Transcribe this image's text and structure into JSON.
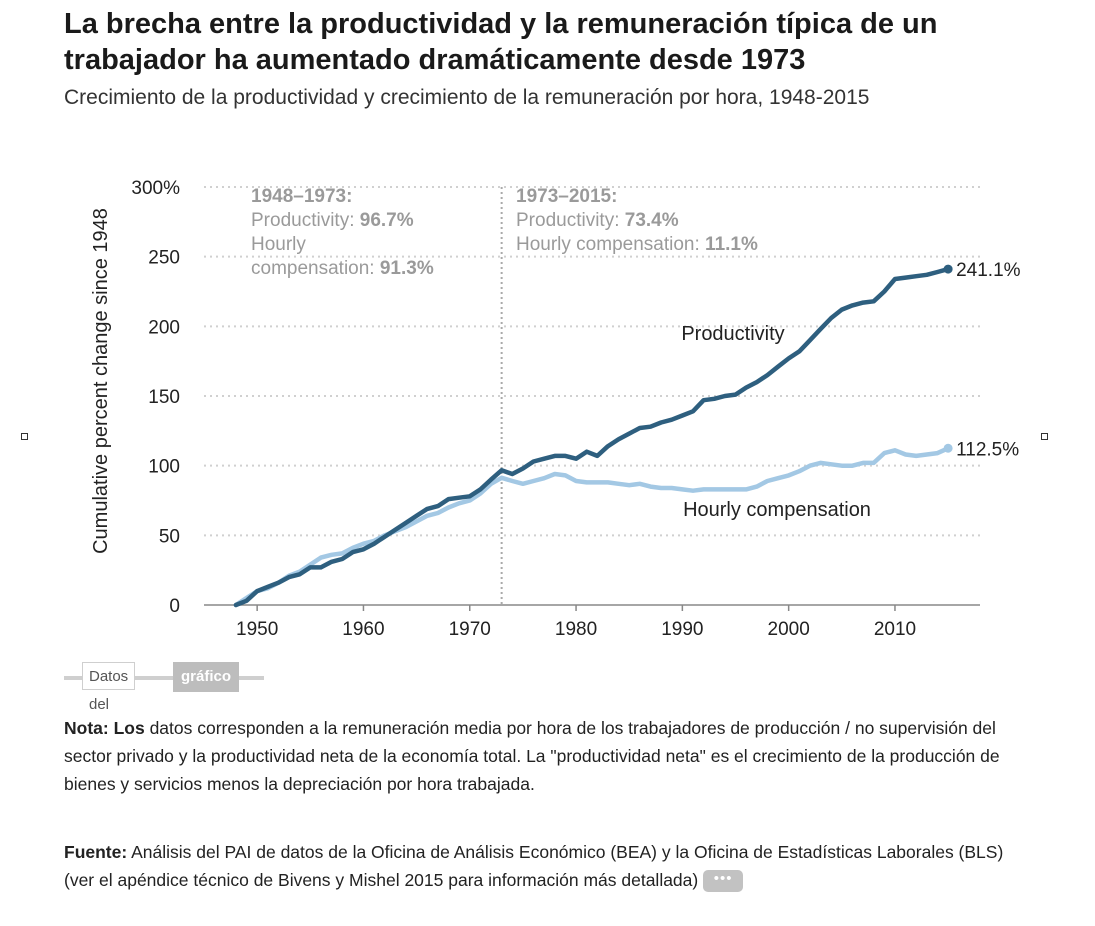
{
  "header": {
    "title": "La brecha entre la productividad y la remuneración típica de un trabajador ha aumentado dramáticamente desde 1973",
    "subtitle": "Crecimiento de la productividad y crecimiento de la remuneración por hora, 1948-2015"
  },
  "chart_data": {
    "type": "line",
    "ylabel": "Cumulative percent change since 1948",
    "xlabel": "",
    "xlim": [
      1945,
      2018
    ],
    "ylim": [
      0,
      300
    ],
    "x_ticks": [
      1950,
      1960,
      1970,
      1980,
      1990,
      2000,
      2010
    ],
    "y_ticks": [
      0,
      50,
      100,
      150,
      200,
      250,
      300
    ],
    "y_tick_labels": [
      "0",
      "50",
      "100",
      "150",
      "200",
      "250",
      "300%"
    ],
    "grid": true,
    "divider_year": 1973,
    "colors": {
      "productivity": "#2e5f7f",
      "compensation": "#a3c8e4",
      "grid": "#d0d0d0",
      "axis": "#888888",
      "annotation": "#9a9a9a"
    },
    "series": [
      {
        "name": "Productivity",
        "end_label": "241.1%",
        "points": [
          [
            1948,
            0
          ],
          [
            1949,
            3
          ],
          [
            1950,
            10
          ],
          [
            1951,
            13
          ],
          [
            1952,
            16
          ],
          [
            1953,
            20
          ],
          [
            1954,
            22
          ],
          [
            1955,
            27
          ],
          [
            1956,
            27
          ],
          [
            1957,
            31
          ],
          [
            1958,
            33
          ],
          [
            1959,
            38
          ],
          [
            1960,
            40
          ],
          [
            1961,
            44
          ],
          [
            1962,
            49
          ],
          [
            1963,
            54
          ],
          [
            1964,
            59
          ],
          [
            1965,
            64
          ],
          [
            1966,
            69
          ],
          [
            1967,
            71
          ],
          [
            1968,
            76
          ],
          [
            1969,
            77
          ],
          [
            1970,
            78
          ],
          [
            1971,
            83
          ],
          [
            1972,
            90
          ],
          [
            1973,
            96.7
          ],
          [
            1974,
            94
          ],
          [
            1975,
            98
          ],
          [
            1976,
            103
          ],
          [
            1977,
            105
          ],
          [
            1978,
            107
          ],
          [
            1979,
            107
          ],
          [
            1980,
            105
          ],
          [
            1981,
            110
          ],
          [
            1982,
            107
          ],
          [
            1983,
            114
          ],
          [
            1984,
            119
          ],
          [
            1985,
            123
          ],
          [
            1986,
            127
          ],
          [
            1987,
            128
          ],
          [
            1988,
            131
          ],
          [
            1989,
            133
          ],
          [
            1990,
            136
          ],
          [
            1991,
            139
          ],
          [
            1992,
            147
          ],
          [
            1993,
            148
          ],
          [
            1994,
            150
          ],
          [
            1995,
            151
          ],
          [
            1996,
            156
          ],
          [
            1997,
            160
          ],
          [
            1998,
            165
          ],
          [
            1999,
            171
          ],
          [
            2000,
            177
          ],
          [
            2001,
            182
          ],
          [
            2002,
            190
          ],
          [
            2003,
            198
          ],
          [
            2004,
            206
          ],
          [
            2005,
            212
          ],
          [
            2006,
            215
          ],
          [
            2007,
            217
          ],
          [
            2008,
            218
          ],
          [
            2009,
            225
          ],
          [
            2010,
            234
          ],
          [
            2011,
            235
          ],
          [
            2012,
            236
          ],
          [
            2013,
            237
          ],
          [
            2014,
            239
          ],
          [
            2015,
            241.1
          ]
        ]
      },
      {
        "name": "Hourly compensation",
        "end_label": "112.5%",
        "points": [
          [
            1948,
            0
          ],
          [
            1949,
            5
          ],
          [
            1950,
            10
          ],
          [
            1951,
            12
          ],
          [
            1952,
            16
          ],
          [
            1953,
            21
          ],
          [
            1954,
            24
          ],
          [
            1955,
            29
          ],
          [
            1956,
            34
          ],
          [
            1957,
            36
          ],
          [
            1958,
            37
          ],
          [
            1959,
            41
          ],
          [
            1960,
            44
          ],
          [
            1961,
            46
          ],
          [
            1962,
            50
          ],
          [
            1963,
            53
          ],
          [
            1964,
            56
          ],
          [
            1965,
            60
          ],
          [
            1966,
            64
          ],
          [
            1967,
            66
          ],
          [
            1968,
            70
          ],
          [
            1969,
            73
          ],
          [
            1970,
            75
          ],
          [
            1971,
            80
          ],
          [
            1972,
            87
          ],
          [
            1973,
            91.3
          ],
          [
            1974,
            89
          ],
          [
            1975,
            87
          ],
          [
            1976,
            89
          ],
          [
            1977,
            91
          ],
          [
            1978,
            94
          ],
          [
            1979,
            93
          ],
          [
            1980,
            89
          ],
          [
            1981,
            88
          ],
          [
            1982,
            88
          ],
          [
            1983,
            88
          ],
          [
            1984,
            87
          ],
          [
            1985,
            86
          ],
          [
            1986,
            87
          ],
          [
            1987,
            85
          ],
          [
            1988,
            84
          ],
          [
            1989,
            84
          ],
          [
            1990,
            83
          ],
          [
            1991,
            82
          ],
          [
            1992,
            83
          ],
          [
            1993,
            83
          ],
          [
            1994,
            83
          ],
          [
            1995,
            83
          ],
          [
            1996,
            83
          ],
          [
            1997,
            85
          ],
          [
            1998,
            89
          ],
          [
            1999,
            91
          ],
          [
            2000,
            93
          ],
          [
            2001,
            96
          ],
          [
            2002,
            100
          ],
          [
            2003,
            102
          ],
          [
            2004,
            101
          ],
          [
            2005,
            100
          ],
          [
            2006,
            100
          ],
          [
            2007,
            102
          ],
          [
            2008,
            102
          ],
          [
            2009,
            109
          ],
          [
            2010,
            111
          ],
          [
            2011,
            108
          ],
          [
            2012,
            107
          ],
          [
            2013,
            108
          ],
          [
            2014,
            109
          ],
          [
            2015,
            112.5
          ]
        ]
      }
    ],
    "series_labels": [
      "Productivity",
      "Hourly compensation"
    ],
    "annotations": {
      "left": {
        "heading": "1948–1973:",
        "prod_label": "Productivity: ",
        "prod_value": "96.7%",
        "comp_label_1": "Hourly",
        "comp_label_2": "compensation: ",
        "comp_value": "91.3%"
      },
      "right": {
        "heading": "1973–2015:",
        "prod_label": "Productivity: ",
        "prod_value": "73.4%",
        "comp_label": "Hourly compensation: ",
        "comp_value": "11.1%"
      }
    }
  },
  "controls": {
    "datos_label": "Datos del",
    "grafico_label": "gráfico",
    "more_label": "•••"
  },
  "notes": {
    "nota_label": "Nota: Los",
    "nota_text": " datos corresponden a la remuneración media por hora de los trabajadores de producción / no supervisión del sector privado y la productividad neta de la economía total. La \"productividad neta\" es el crecimiento de la producción de bienes y servicios menos la depreciación por hora trabajada.",
    "fuente_label": "Fuente:",
    "fuente_text": "  Análisis del PAI de datos de la Oficina de Análisis Económico (BEA) y la Oficina de Estadísticas Laborales (BLS) (ver el apéndice técnico de Bivens y Mishel 2015 para información más detallada) "
  }
}
